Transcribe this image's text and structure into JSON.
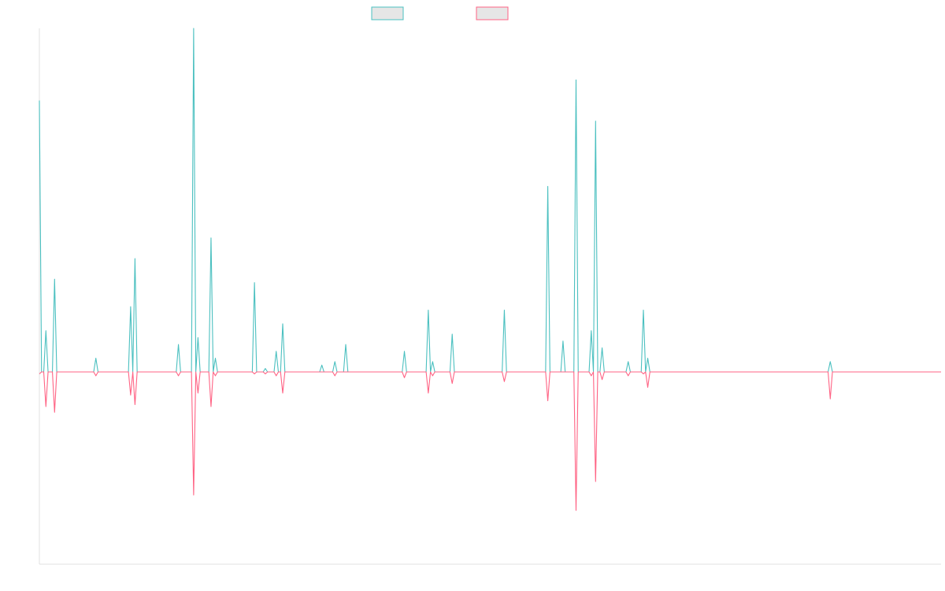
{
  "chart_data": {
    "type": "line",
    "title": "",
    "xlabel": "",
    "ylabel": "",
    "grid": false,
    "legend_position": "top-center",
    "x_count": 416,
    "ylim": [
      -1.0,
      1.0
    ],
    "colors": {
      "series_0": "#4bc0c0",
      "series_1": "#ff6384"
    },
    "series": [
      {
        "color": "#4bc0c0",
        "points": [
          [
            0,
            0.79
          ],
          [
            3,
            0.12
          ],
          [
            7,
            0.27
          ],
          [
            26,
            0.04
          ],
          [
            42,
            0.19
          ],
          [
            44,
            0.33
          ],
          [
            64,
            0.08
          ],
          [
            71,
            1.0
          ],
          [
            73,
            0.1
          ],
          [
            79,
            0.39
          ],
          [
            81,
            0.04
          ],
          [
            99,
            0.26
          ],
          [
            104,
            0.01
          ],
          [
            109,
            0.06
          ],
          [
            112,
            0.14
          ],
          [
            130,
            0.02
          ],
          [
            136,
            0.03
          ],
          [
            141,
            0.08
          ],
          [
            168,
            0.06
          ],
          [
            179,
            0.18
          ],
          [
            181,
            0.03
          ],
          [
            190,
            0.11
          ],
          [
            214,
            0.18
          ],
          [
            234,
            0.54
          ],
          [
            241,
            0.09
          ],
          [
            247,
            0.85
          ],
          [
            254,
            0.12
          ],
          [
            256,
            0.73
          ],
          [
            259,
            0.07
          ],
          [
            271,
            0.03
          ],
          [
            278,
            0.18
          ],
          [
            280,
            0.04
          ],
          [
            364,
            0.03
          ]
        ]
      },
      {
        "color": "#ff6384",
        "points": [
          [
            0,
            -0.01
          ],
          [
            3,
            -0.18
          ],
          [
            7,
            -0.21
          ],
          [
            26,
            -0.02
          ],
          [
            42,
            -0.12
          ],
          [
            44,
            -0.17
          ],
          [
            64,
            -0.02
          ],
          [
            71,
            -0.64
          ],
          [
            73,
            -0.11
          ],
          [
            79,
            -0.18
          ],
          [
            81,
            -0.02
          ],
          [
            99,
            -0.01
          ],
          [
            104,
            -0.01
          ],
          [
            109,
            -0.02
          ],
          [
            112,
            -0.11
          ],
          [
            136,
            -0.02
          ],
          [
            168,
            -0.03
          ],
          [
            179,
            -0.11
          ],
          [
            181,
            -0.02
          ],
          [
            190,
            -0.06
          ],
          [
            214,
            -0.05
          ],
          [
            234,
            -0.15
          ],
          [
            247,
            -0.72
          ],
          [
            254,
            -0.02
          ],
          [
            256,
            -0.57
          ],
          [
            259,
            -0.04
          ],
          [
            271,
            -0.02
          ],
          [
            278,
            -0.01
          ],
          [
            280,
            -0.08
          ],
          [
            364,
            -0.14
          ]
        ]
      }
    ]
  }
}
